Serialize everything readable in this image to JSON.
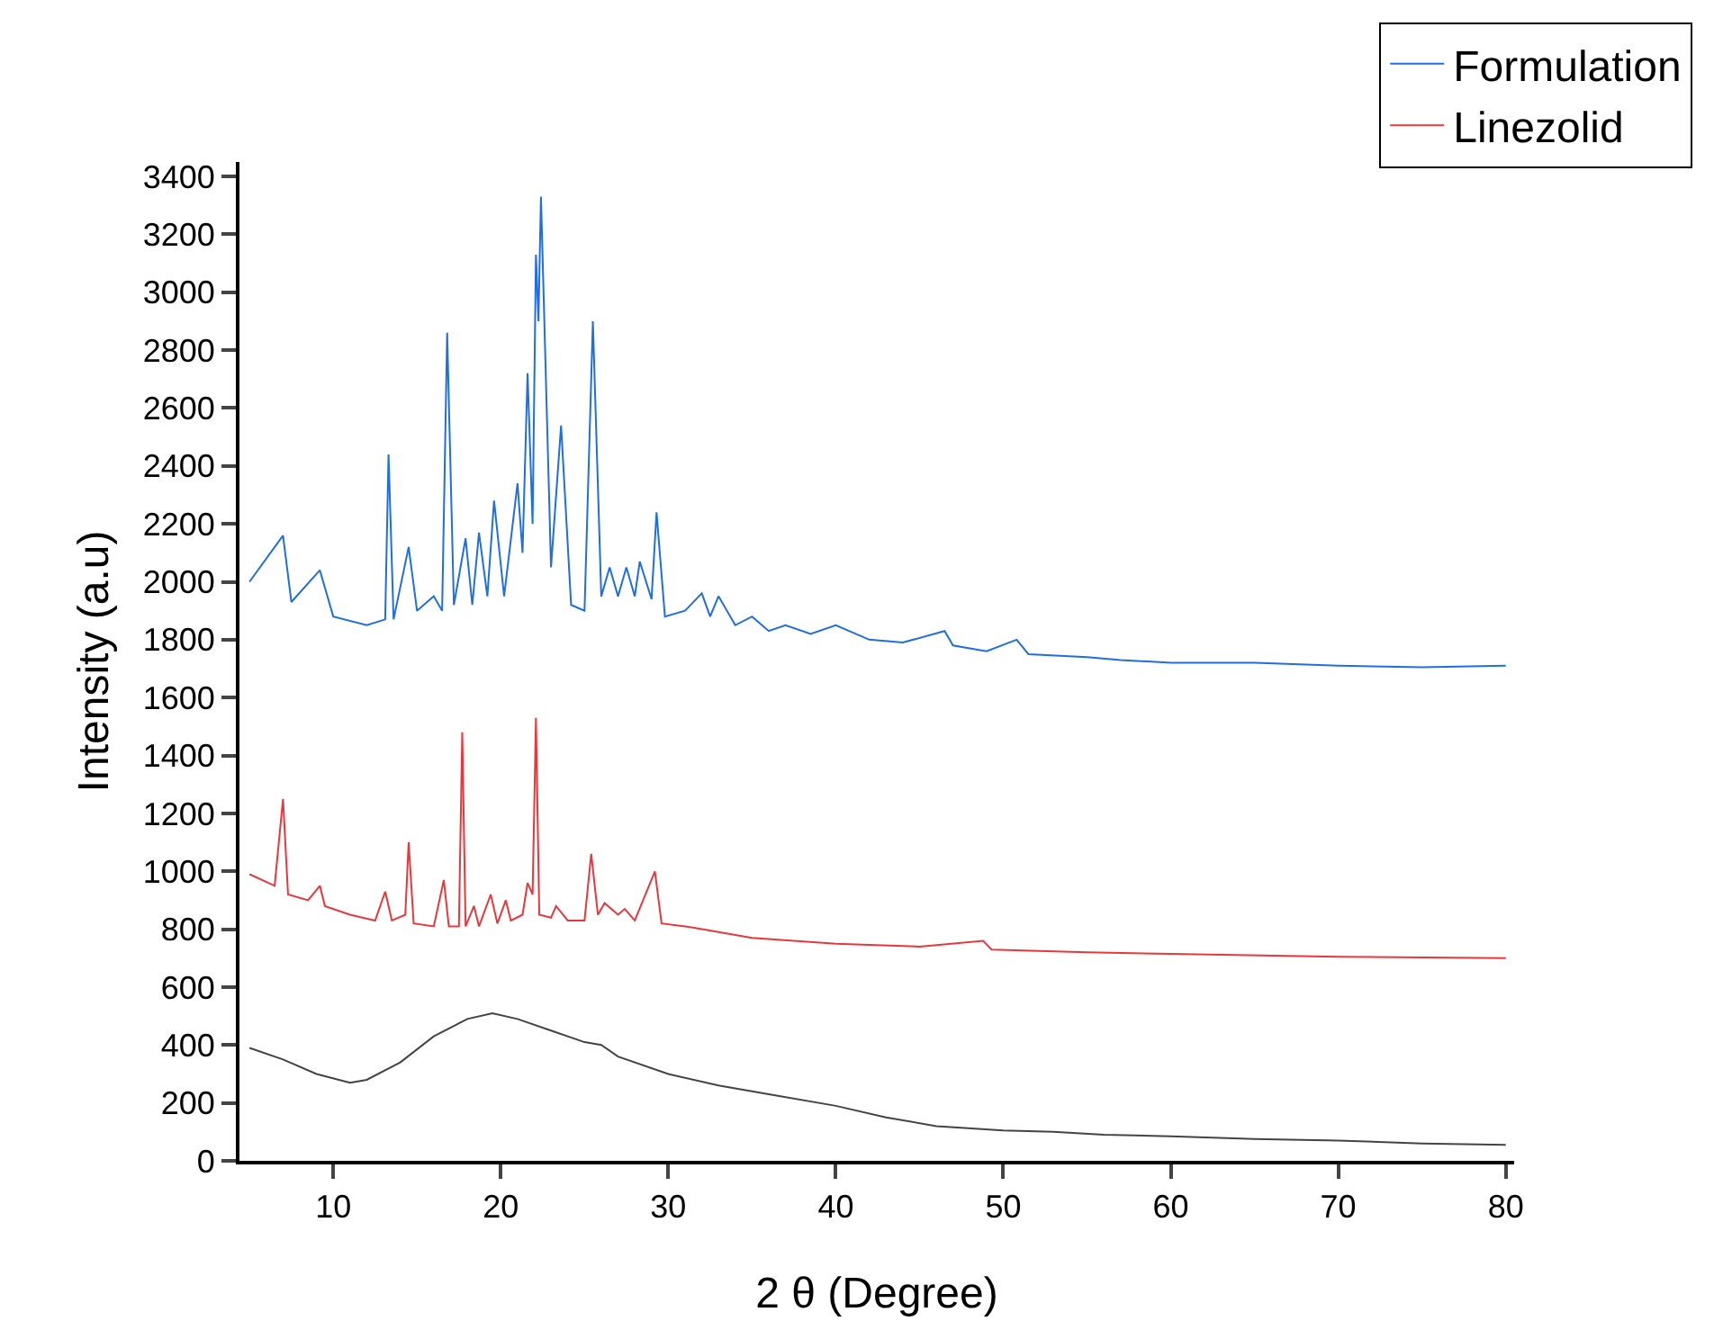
{
  "chart_data": {
    "type": "line",
    "xlabel": "2 θ (Degree)",
    "ylabel": "Intensity (a.u)",
    "xlim": [
      4.4,
      80.5
    ],
    "xticks": [
      10,
      20,
      30,
      40,
      50,
      60,
      70,
      80
    ],
    "ylim": [
      0,
      3450
    ],
    "yticks": [
      0,
      200,
      400,
      600,
      800,
      1000,
      1200,
      1400,
      1600,
      1800,
      2000,
      2200,
      2400,
      2600,
      2800,
      3000,
      3200,
      3400
    ],
    "grid": false,
    "legend": "top right",
    "marker": "none",
    "line_style": "solid",
    "series": [
      {
        "name": "Formulation",
        "color": "#1f6fe0",
        "x": [
          5,
          7,
          7.5,
          9.2,
          10,
          12,
          13.1,
          13.3,
          13.6,
          14.5,
          15,
          16,
          16.5,
          16.8,
          17.2,
          17.9,
          18.3,
          18.7,
          19.2,
          19.6,
          20.2,
          21,
          21.3,
          21.6,
          21.9,
          22.1,
          22.25,
          22.4,
          23,
          23.6,
          24.2,
          25,
          25.5,
          26,
          26.5,
          27,
          27.5,
          28,
          28.3,
          29,
          29.3,
          29.8,
          31,
          32,
          32.5,
          33,
          34,
          35,
          36,
          37,
          38.5,
          40,
          42,
          44,
          46.5,
          47,
          49,
          50.8,
          51.5,
          55,
          57,
          60,
          65,
          70,
          75,
          80
        ],
        "values": [
          2000,
          2160,
          1930,
          2040,
          1880,
          1850,
          1870,
          2440,
          1870,
          2120,
          1900,
          1950,
          1900,
          2860,
          1920,
          2150,
          1920,
          2170,
          1950,
          2280,
          1950,
          2340,
          2100,
          2720,
          2200,
          3130,
          2900,
          3330,
          2050,
          2540,
          1920,
          1900,
          2900,
          1950,
          2050,
          1950,
          2050,
          1950,
          2070,
          1940,
          2240,
          1880,
          1900,
          1960,
          1880,
          1950,
          1850,
          1880,
          1830,
          1850,
          1820,
          1850,
          1800,
          1790,
          1830,
          1780,
          1760,
          1800,
          1750,
          1740,
          1730,
          1720,
          1720,
          1710,
          1705,
          1710
        ]
      },
      {
        "name": "Linezolid",
        "color": "#e8383d",
        "x": [
          5,
          6.5,
          7,
          7.3,
          8.5,
          9.2,
          9.5,
          11,
          12.5,
          13.1,
          13.5,
          14.3,
          14.5,
          14.8,
          16,
          16.6,
          16.9,
          17.5,
          17.7,
          17.9,
          18.4,
          18.7,
          19.4,
          19.8,
          20.3,
          20.6,
          21.3,
          21.6,
          21.9,
          22.1,
          22.3,
          23,
          23.3,
          24,
          25,
          25.4,
          25.8,
          26.2,
          27,
          27.4,
          28,
          29.2,
          29.6,
          31,
          32,
          35,
          40,
          45,
          48.8,
          49.3,
          55,
          60,
          70,
          80
        ],
        "values": [
          990,
          950,
          1250,
          920,
          900,
          950,
          880,
          850,
          830,
          930,
          830,
          850,
          1100,
          820,
          810,
          970,
          810,
          810,
          1480,
          810,
          880,
          810,
          920,
          820,
          900,
          830,
          850,
          960,
          920,
          1530,
          850,
          840,
          880,
          830,
          830,
          1060,
          850,
          890,
          850,
          870,
          830,
          1000,
          820,
          810,
          800,
          770,
          750,
          740,
          760,
          730,
          720,
          715,
          705,
          700
        ]
      },
      {
        "color": "#444444",
        "x": [
          5,
          7,
          9,
          11,
          12,
          14,
          16,
          18,
          19.5,
          21,
          23,
          25,
          26,
          27,
          30,
          33,
          36,
          40,
          43,
          46,
          50,
          53,
          56,
          60,
          65,
          70,
          75,
          80
        ],
        "values": [
          390,
          350,
          300,
          270,
          280,
          340,
          430,
          490,
          510,
          490,
          450,
          410,
          400,
          360,
          300,
          260,
          230,
          190,
          150,
          120,
          105,
          100,
          90,
          85,
          75,
          70,
          60,
          55
        ]
      }
    ]
  }
}
